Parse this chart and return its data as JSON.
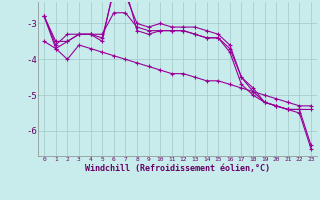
{
  "xlabel": "Windchill (Refroidissement éolien,°C)",
  "background_color": "#c8ecec",
  "line_color": "#990099",
  "grid_color": "#a0c8c8",
  "xlim": [
    -0.5,
    23.5
  ],
  "ylim": [
    -6.7,
    -2.4
  ],
  "yticks": [
    -6,
    -5,
    -4,
    -3
  ],
  "xticks": [
    0,
    1,
    2,
    3,
    4,
    5,
    6,
    7,
    8,
    9,
    10,
    11,
    12,
    13,
    14,
    15,
    16,
    17,
    18,
    19,
    20,
    21,
    22,
    23
  ],
  "series": [
    [
      -2.8,
      -3.6,
      -3.3,
      -3.3,
      -3.3,
      -3.4,
      -2.1,
      -2.2,
      -3.0,
      -3.1,
      -3.0,
      -3.1,
      -3.1,
      -3.1,
      -3.2,
      -3.3,
      -3.6,
      -4.5,
      -4.9,
      -5.2,
      -5.3,
      -5.4,
      -5.4,
      -6.4
    ],
    [
      -2.8,
      -3.7,
      -3.5,
      -3.3,
      -3.3,
      -3.5,
      -2.0,
      -2.0,
      -3.2,
      -3.3,
      -3.2,
      -3.2,
      -3.2,
      -3.3,
      -3.4,
      -3.4,
      -3.8,
      -4.7,
      -5.0,
      -5.2,
      -5.3,
      -5.4,
      -5.5,
      -6.5
    ],
    [
      -2.8,
      -3.5,
      -3.5,
      -3.3,
      -3.3,
      -3.3,
      -2.7,
      -2.7,
      -3.1,
      -3.2,
      -3.2,
      -3.2,
      -3.2,
      -3.3,
      -3.4,
      -3.4,
      -3.7,
      -4.5,
      -4.8,
      -5.2,
      -5.3,
      -5.4,
      -5.4,
      -5.4
    ],
    [
      -3.5,
      -3.7,
      -4.0,
      -3.6,
      -3.7,
      -3.8,
      -3.9,
      -4.0,
      -4.1,
      -4.2,
      -4.3,
      -4.4,
      -4.4,
      -4.5,
      -4.6,
      -4.6,
      -4.7,
      -4.8,
      -4.9,
      -5.0,
      -5.1,
      -5.2,
      -5.3,
      -5.3
    ]
  ]
}
